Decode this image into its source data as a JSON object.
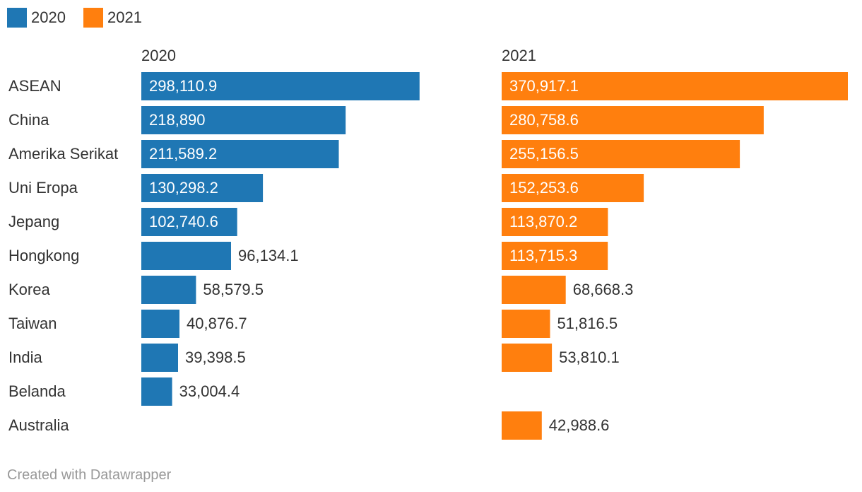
{
  "chart_data": {
    "type": "bar",
    "title": "",
    "xlabel": "",
    "ylabel": "",
    "legend": [
      {
        "name": "2020",
        "color": "#1f77b4"
      },
      {
        "name": "2021",
        "color": "#ff7f0e"
      }
    ],
    "categories": [
      "ASEAN",
      "China",
      "Amerika Serikat",
      "Uni Eropa",
      "Jepang",
      "Hongkong",
      "Korea",
      "Taiwan",
      "India",
      "Belanda",
      "Australia"
    ],
    "series": [
      {
        "name": "2020",
        "color": "#1f77b4",
        "values": [
          298110.9,
          218890,
          211589.2,
          130298.2,
          102740.6,
          96134.1,
          58579.5,
          40876.7,
          39398.5,
          33004.4,
          null
        ],
        "labels": [
          "298,110.9",
          "218,890",
          "211,589.2",
          "130,298.2",
          "102,740.6",
          "96,134.1",
          "58,579.5",
          "40,876.7",
          "39,398.5",
          "33,004.4",
          ""
        ]
      },
      {
        "name": "2021",
        "color": "#ff7f0e",
        "values": [
          370917.1,
          280758.6,
          255156.5,
          152253.6,
          113870.2,
          113715.3,
          68668.3,
          51816.5,
          53810.1,
          null,
          42988.6
        ],
        "labels": [
          "370,917.1",
          "280,758.6",
          "255,156.5",
          "152,253.6",
          "113,870.2",
          "113,715.3",
          "68,668.3",
          "51,816.5",
          "53,810.1",
          "",
          "42,988.6"
        ]
      }
    ],
    "xlim": [
      0,
      370917.1
    ]
  },
  "footer": "Created with Datawrapper"
}
